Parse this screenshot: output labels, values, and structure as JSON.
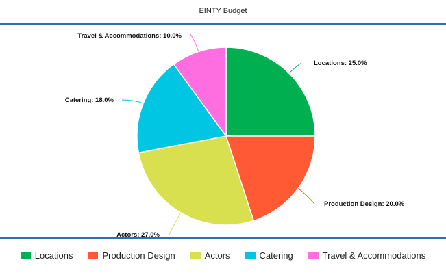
{
  "chart_data": {
    "type": "pie",
    "title": "EINTY Budget",
    "slices": [
      {
        "name": "Locations",
        "value": 25.0,
        "label": "Locations: 25.0%",
        "color": "#00b050"
      },
      {
        "name": "Production Design",
        "value": 20.0,
        "label": "Production Design: 20.0%",
        "color": "#ff5a33"
      },
      {
        "name": "Actors",
        "value": 27.0,
        "label": "Actors: 27.0%",
        "color": "#d9e04f"
      },
      {
        "name": "Catering",
        "value": 18.0,
        "label": "Catering: 18.0%",
        "color": "#00c5e3"
      },
      {
        "name": "Travel & Accommodations",
        "value": 10.0,
        "label": "Travel & Accommodations: 10.0%",
        "color": "#ff6ee0"
      }
    ],
    "legend_position": "bottom"
  }
}
